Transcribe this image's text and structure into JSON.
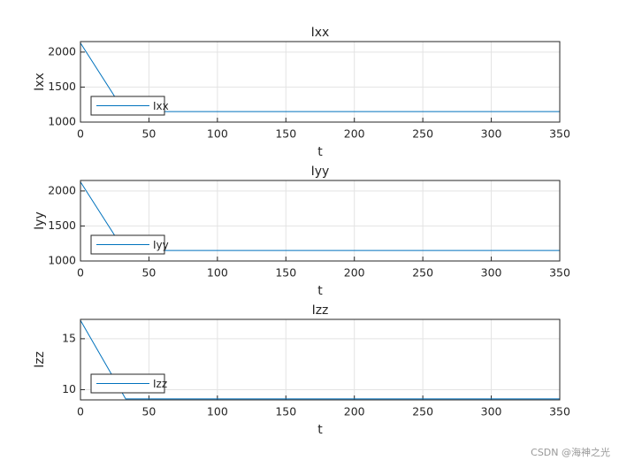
{
  "chart_data": [
    {
      "type": "line",
      "title": "Ixx",
      "xlabel": "t",
      "ylabel": "Ixx",
      "x": [
        0,
        32,
        350
      ],
      "series": [
        {
          "name": "Ixx",
          "color": "#0072bd",
          "values": [
            2130,
            1150,
            1150
          ]
        }
      ],
      "xlim": [
        0,
        350
      ],
      "xticks": [
        0,
        50,
        100,
        150,
        200,
        250,
        300,
        350
      ],
      "ylim": [
        1000,
        2150
      ],
      "yticks": [
        1000,
        1500,
        2000
      ],
      "grid": true,
      "legend": "lower left"
    },
    {
      "type": "line",
      "title": "Iyy",
      "xlabel": "t",
      "ylabel": "Iyy",
      "x": [
        0,
        32,
        350
      ],
      "series": [
        {
          "name": "Iyy",
          "color": "#0072bd",
          "values": [
            2130,
            1150,
            1150
          ]
        }
      ],
      "xlim": [
        0,
        350
      ],
      "xticks": [
        0,
        50,
        100,
        150,
        200,
        250,
        300,
        350
      ],
      "ylim": [
        1000,
        2150
      ],
      "yticks": [
        1000,
        1500,
        2000
      ],
      "grid": true,
      "legend": "lower left"
    },
    {
      "type": "line",
      "title": "Izz",
      "xlabel": "t",
      "ylabel": "Izz",
      "x": [
        0,
        33,
        350
      ],
      "series": [
        {
          "name": "Izz",
          "color": "#0072bd",
          "values": [
            16.8,
            9.1,
            9.1
          ]
        }
      ],
      "xlim": [
        0,
        350
      ],
      "xticks": [
        0,
        50,
        100,
        150,
        200,
        250,
        300,
        350
      ],
      "ylim": [
        9,
        16.9
      ],
      "yticks": [
        10,
        15
      ],
      "grid": true,
      "legend": "lower left"
    }
  ],
  "watermark": "CSDN @海神之光"
}
